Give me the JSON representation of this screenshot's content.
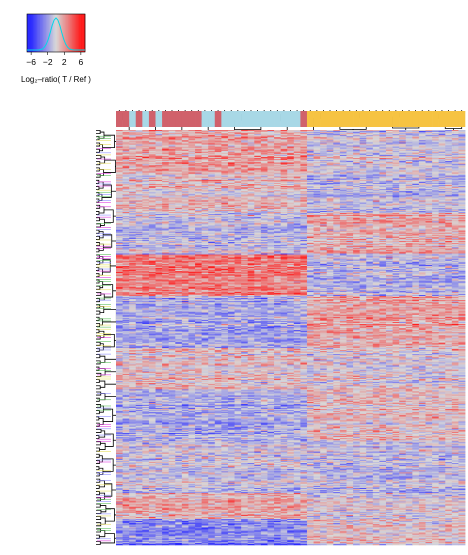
{
  "chart_data": {
    "type": "heatmap",
    "title": "",
    "xlabel": "",
    "ylabel": "",
    "color_key": {
      "label": "Log₂–ratio( T / Ref )",
      "ticks": [
        "−6",
        "−2",
        "2",
        "6"
      ],
      "tick_values": [
        -6,
        -2,
        2,
        6
      ],
      "range": [
        -7,
        7
      ],
      "low_color": "#2a2aff",
      "mid_color": "#d8d8d8",
      "high_color": "#ff1a1a",
      "histogram": "yes"
    },
    "sample_groups": [
      {
        "color": "#d0616b",
        "count": 2
      },
      {
        "color": "#a8d8e6",
        "count": 1
      },
      {
        "color": "#d0616b",
        "count": 1
      },
      {
        "color": "#a8d8e6",
        "count": 1
      },
      {
        "color": "#d0616b",
        "count": 1
      },
      {
        "color": "#a8d8e6",
        "count": 1
      },
      {
        "color": "#d0616b",
        "count": 6
      },
      {
        "color": "#a8d8e6",
        "count": 2
      },
      {
        "color": "#d0616b",
        "count": 1
      },
      {
        "color": "#a8d8e6",
        "count": 12
      },
      {
        "color": "#d0616b",
        "count": 1
      },
      {
        "color": "#f6c342",
        "count": 24
      }
    ],
    "row_groups": [
      {
        "rows": 40,
        "cluster_a": 0.7,
        "cluster_b": -0.1
      },
      {
        "rows": 40,
        "cluster_a": 0.3,
        "cluster_b": -0.3
      },
      {
        "rows": 40,
        "cluster_a": -0.3,
        "cluster_b": 0.5
      },
      {
        "rows": 40,
        "cluster_a": 1.2,
        "cluster_b": -0.3
      },
      {
        "rows": 50,
        "cluster_a": -0.6,
        "cluster_b": 0.6
      },
      {
        "rows": 40,
        "cluster_a": 0.2,
        "cluster_b": 0.0
      },
      {
        "rows": 50,
        "cluster_a": -0.5,
        "cluster_b": 0.3
      },
      {
        "rows": 50,
        "cluster_a": -0.2,
        "cluster_b": -0.3
      },
      {
        "rows": 25,
        "cluster_a": 0.6,
        "cluster_b": 0.0
      },
      {
        "rows": 25,
        "cluster_a": -1.0,
        "cluster_b": 0.2
      }
    ],
    "row_label_colors": [
      "#e040e0",
      "#60c060",
      "#9090ff",
      "#e8e060"
    ],
    "colors": {
      "heat_low": "#2a2aff",
      "heat_mid": "#d8d8d8",
      "heat_high": "#ff1a1a",
      "dendrogram": "#000000",
      "separator": "#ffffff"
    }
  }
}
